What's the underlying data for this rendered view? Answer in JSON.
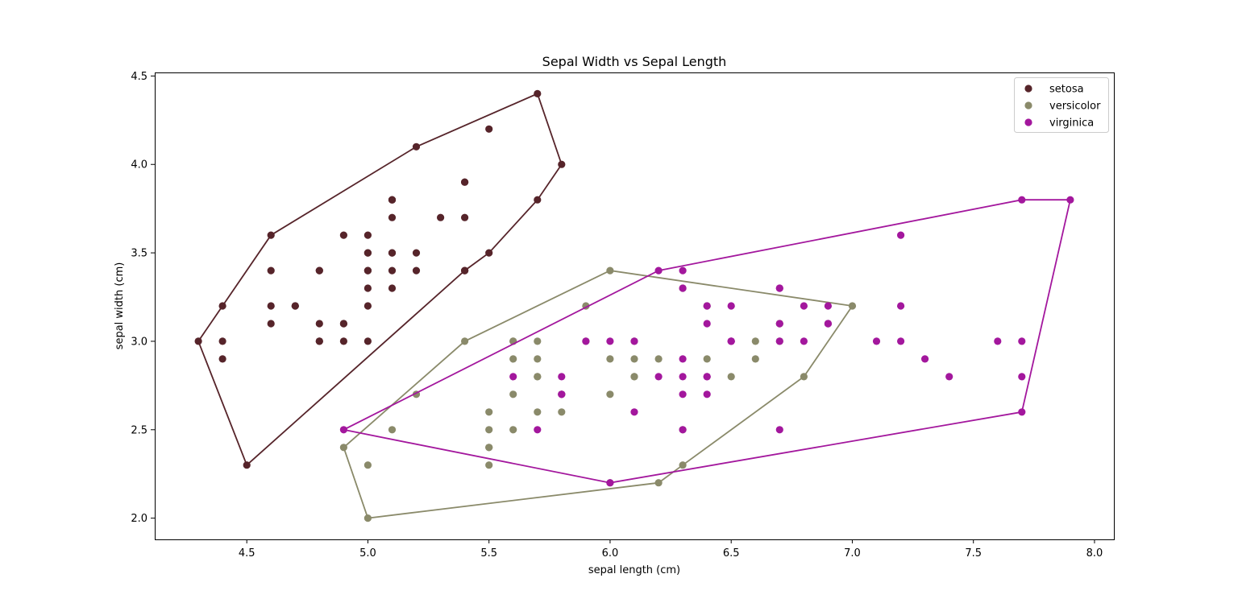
{
  "chart_data": {
    "type": "scatter",
    "title": "Sepal Width vs Sepal Length",
    "xlabel": "sepal length (cm)",
    "ylabel": "sepal width (cm)",
    "xlim": [
      4.12,
      8.08
    ],
    "ylim": [
      1.88,
      4.52
    ],
    "xticks": [
      4.5,
      5.0,
      5.5,
      6.0,
      6.5,
      7.0,
      7.5,
      8.0
    ],
    "yticks": [
      2.0,
      2.5,
      3.0,
      3.5,
      4.0,
      4.5
    ],
    "xtick_labels": [
      "4.5",
      "5.0",
      "5.5",
      "6.0",
      "6.5",
      "7.0",
      "7.5",
      "8.0"
    ],
    "ytick_labels": [
      "2.0",
      "2.5",
      "3.0",
      "3.5",
      "4.0",
      "4.5"
    ],
    "grid": false,
    "legend_position": "top-right",
    "series": [
      {
        "name": "setosa",
        "color": "#56242a",
        "points": [
          [
            5.1,
            3.5
          ],
          [
            4.9,
            3.0
          ],
          [
            4.7,
            3.2
          ],
          [
            4.6,
            3.1
          ],
          [
            5.0,
            3.6
          ],
          [
            5.4,
            3.9
          ],
          [
            4.6,
            3.4
          ],
          [
            5.0,
            3.4
          ],
          [
            4.4,
            2.9
          ],
          [
            4.9,
            3.1
          ],
          [
            5.4,
            3.7
          ],
          [
            4.8,
            3.4
          ],
          [
            4.8,
            3.0
          ],
          [
            4.3,
            3.0
          ],
          [
            5.8,
            4.0
          ],
          [
            5.7,
            4.4
          ],
          [
            5.4,
            3.9
          ],
          [
            5.1,
            3.5
          ],
          [
            5.7,
            3.8
          ],
          [
            5.1,
            3.8
          ],
          [
            5.4,
            3.4
          ],
          [
            5.1,
            3.7
          ],
          [
            4.6,
            3.6
          ],
          [
            5.1,
            3.3
          ],
          [
            4.8,
            3.4
          ],
          [
            5.0,
            3.0
          ],
          [
            5.0,
            3.4
          ],
          [
            5.2,
            3.5
          ],
          [
            5.2,
            3.4
          ],
          [
            4.7,
            3.2
          ],
          [
            4.8,
            3.1
          ],
          [
            5.4,
            3.4
          ],
          [
            5.2,
            4.1
          ],
          [
            5.5,
            4.2
          ],
          [
            4.9,
            3.1
          ],
          [
            5.0,
            3.2
          ],
          [
            5.5,
            3.5
          ],
          [
            4.9,
            3.6
          ],
          [
            4.4,
            3.0
          ],
          [
            5.1,
            3.4
          ],
          [
            5.0,
            3.5
          ],
          [
            4.5,
            2.3
          ],
          [
            4.4,
            3.2
          ],
          [
            5.0,
            3.5
          ],
          [
            5.1,
            3.8
          ],
          [
            4.8,
            3.0
          ],
          [
            5.1,
            3.8
          ],
          [
            4.6,
            3.2
          ],
          [
            5.3,
            3.7
          ],
          [
            5.0,
            3.3
          ]
        ],
        "hull": [
          [
            4.3,
            3.0
          ],
          [
            4.5,
            2.3
          ],
          [
            5.4,
            3.4
          ],
          [
            5.5,
            3.5
          ],
          [
            5.7,
            3.8
          ],
          [
            5.8,
            4.0
          ],
          [
            5.7,
            4.4
          ],
          [
            5.2,
            4.1
          ],
          [
            4.6,
            3.6
          ],
          [
            4.4,
            3.2
          ]
        ]
      },
      {
        "name": "versicolor",
        "color": "#8a8a6a",
        "points": [
          [
            7.0,
            3.2
          ],
          [
            6.4,
            3.2
          ],
          [
            6.9,
            3.1
          ],
          [
            5.5,
            2.3
          ],
          [
            6.5,
            2.8
          ],
          [
            5.7,
            2.8
          ],
          [
            6.3,
            3.3
          ],
          [
            4.9,
            2.4
          ],
          [
            6.6,
            2.9
          ],
          [
            5.2,
            2.7
          ],
          [
            5.0,
            2.0
          ],
          [
            5.9,
            3.0
          ],
          [
            6.0,
            2.2
          ],
          [
            6.1,
            2.9
          ],
          [
            5.6,
            2.9
          ],
          [
            6.7,
            3.1
          ],
          [
            5.6,
            3.0
          ],
          [
            5.8,
            2.7
          ],
          [
            6.2,
            2.2
          ],
          [
            5.6,
            2.5
          ],
          [
            5.9,
            3.2
          ],
          [
            6.1,
            2.8
          ],
          [
            6.3,
            2.5
          ],
          [
            6.1,
            2.8
          ],
          [
            6.4,
            2.9
          ],
          [
            6.6,
            3.0
          ],
          [
            6.8,
            2.8
          ],
          [
            6.7,
            3.0
          ],
          [
            6.0,
            2.9
          ],
          [
            5.7,
            2.6
          ],
          [
            5.5,
            2.4
          ],
          [
            5.5,
            2.4
          ],
          [
            5.8,
            2.7
          ],
          [
            6.0,
            2.7
          ],
          [
            5.4,
            3.0
          ],
          [
            6.0,
            3.4
          ],
          [
            6.7,
            3.1
          ],
          [
            6.3,
            2.3
          ],
          [
            5.6,
            3.0
          ],
          [
            5.5,
            2.5
          ],
          [
            5.5,
            2.6
          ],
          [
            6.1,
            3.0
          ],
          [
            5.8,
            2.6
          ],
          [
            5.0,
            2.3
          ],
          [
            5.6,
            2.7
          ],
          [
            5.7,
            3.0
          ],
          [
            5.7,
            2.9
          ],
          [
            6.2,
            2.9
          ],
          [
            5.1,
            2.5
          ],
          [
            5.7,
            2.8
          ]
        ],
        "hull": [
          [
            4.9,
            2.4
          ],
          [
            5.0,
            2.0
          ],
          [
            6.2,
            2.2
          ],
          [
            6.3,
            2.3
          ],
          [
            6.8,
            2.8
          ],
          [
            7.0,
            3.2
          ],
          [
            6.0,
            3.4
          ],
          [
            5.4,
            3.0
          ]
        ]
      },
      {
        "name": "virginica",
        "color": "#a3179d",
        "points": [
          [
            6.3,
            3.3
          ],
          [
            5.8,
            2.7
          ],
          [
            7.1,
            3.0
          ],
          [
            6.3,
            2.9
          ],
          [
            6.5,
            3.0
          ],
          [
            7.6,
            3.0
          ],
          [
            4.9,
            2.5
          ],
          [
            7.3,
            2.9
          ],
          [
            6.7,
            2.5
          ],
          [
            7.2,
            3.6
          ],
          [
            6.5,
            3.2
          ],
          [
            6.4,
            2.7
          ],
          [
            6.8,
            3.0
          ],
          [
            5.7,
            2.5
          ],
          [
            5.8,
            2.8
          ],
          [
            6.4,
            3.2
          ],
          [
            6.5,
            3.0
          ],
          [
            7.7,
            3.8
          ],
          [
            7.7,
            2.6
          ],
          [
            6.0,
            2.2
          ],
          [
            6.9,
            3.2
          ],
          [
            5.6,
            2.8
          ],
          [
            7.7,
            2.8
          ],
          [
            6.3,
            2.7
          ],
          [
            6.7,
            3.3
          ],
          [
            7.2,
            3.2
          ],
          [
            6.2,
            2.8
          ],
          [
            6.1,
            3.0
          ],
          [
            6.4,
            2.8
          ],
          [
            7.2,
            3.0
          ],
          [
            7.4,
            2.8
          ],
          [
            7.9,
            3.8
          ],
          [
            6.4,
            2.8
          ],
          [
            6.3,
            2.8
          ],
          [
            6.1,
            2.6
          ],
          [
            7.7,
            3.0
          ],
          [
            6.3,
            3.4
          ],
          [
            6.4,
            3.1
          ],
          [
            6.0,
            3.0
          ],
          [
            6.9,
            3.1
          ],
          [
            6.7,
            3.1
          ],
          [
            6.9,
            3.1
          ],
          [
            5.8,
            2.7
          ],
          [
            6.8,
            3.2
          ],
          [
            6.7,
            3.3
          ],
          [
            6.7,
            3.0
          ],
          [
            6.3,
            2.5
          ],
          [
            6.5,
            3.0
          ],
          [
            6.2,
            3.4
          ],
          [
            5.9,
            3.0
          ]
        ],
        "hull": [
          [
            4.9,
            2.5
          ],
          [
            6.0,
            2.2
          ],
          [
            7.7,
            2.6
          ],
          [
            7.9,
            3.8
          ],
          [
            7.7,
            3.8
          ],
          [
            6.2,
            3.4
          ]
        ]
      }
    ]
  }
}
